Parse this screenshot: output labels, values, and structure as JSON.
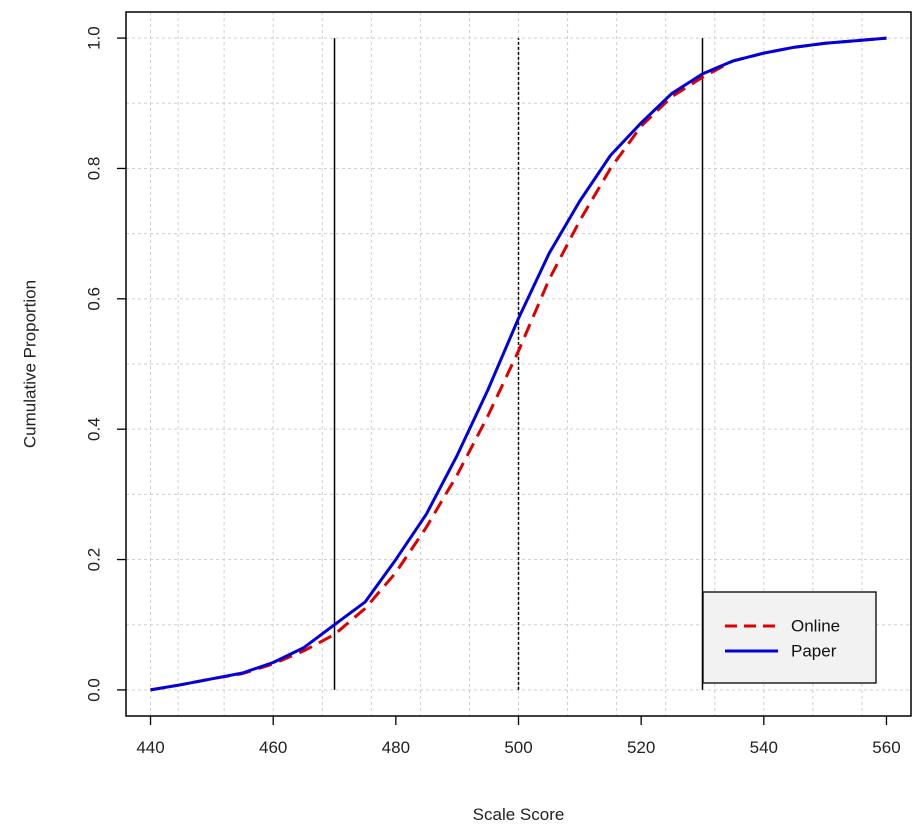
{
  "chart_data": {
    "type": "line",
    "title": "",
    "xlabel": "Scale Score",
    "ylabel": "Cumulative Proportion",
    "xlim": [
      436,
      564
    ],
    "ylim": [
      -0.04,
      1.04
    ],
    "x_ticks": [
      440,
      460,
      480,
      500,
      520,
      540,
      560
    ],
    "x_tick_labels": [
      "440",
      "460",
      "480",
      "500",
      "520",
      "540",
      "560"
    ],
    "y_ticks": [
      0.0,
      0.2,
      0.4,
      0.6,
      0.8,
      1.0
    ],
    "y_tick_labels": [
      "0.0",
      "0.2",
      "0.4",
      "0.6",
      "0.8",
      "1.0"
    ],
    "grid": true,
    "grid_x": [
      440,
      444.5,
      452,
      460,
      468,
      476,
      484,
      492,
      500,
      508,
      516,
      524,
      532,
      540,
      548,
      556
    ],
    "grid_y": [
      0.0,
      0.1,
      0.2,
      0.3,
      0.4,
      0.5,
      0.6,
      0.7,
      0.8,
      0.9,
      1.0
    ],
    "legend_position": "bottom-right",
    "reference_lines": [
      {
        "x": 470,
        "y_range": [
          0,
          1
        ],
        "style": "solid",
        "color": "#000000"
      },
      {
        "x": 500,
        "y_range": [
          0,
          1
        ],
        "style": "dotted",
        "color": "#000000"
      },
      {
        "x": 530,
        "y_range": [
          0,
          1
        ],
        "style": "solid",
        "color": "#000000"
      }
    ],
    "series": [
      {
        "name": "Online",
        "color": "#dd0000",
        "style": "dashed",
        "x": [
          440,
          445,
          450,
          455,
          460,
          465,
          470,
          475,
          480,
          485,
          490,
          495,
          500,
          505,
          510,
          515,
          520,
          525,
          530,
          535,
          540,
          545,
          550,
          555,
          560
        ],
        "y": [
          0.0,
          0.008,
          0.017,
          0.025,
          0.04,
          0.06,
          0.085,
          0.125,
          0.18,
          0.25,
          0.33,
          0.42,
          0.52,
          0.63,
          0.72,
          0.8,
          0.865,
          0.91,
          0.94,
          0.965,
          0.977,
          0.986,
          0.992,
          0.996,
          1.0
        ]
      },
      {
        "name": "Paper",
        "color": "#0000dd",
        "style": "solid",
        "x": [
          440,
          445,
          450,
          455,
          460,
          465,
          470,
          475,
          480,
          485,
          490,
          495,
          500,
          505,
          510,
          515,
          520,
          525,
          530,
          535,
          540,
          545,
          550,
          555,
          560
        ],
        "y": [
          0.0,
          0.008,
          0.017,
          0.026,
          0.042,
          0.065,
          0.1,
          0.135,
          0.2,
          0.27,
          0.36,
          0.46,
          0.57,
          0.67,
          0.75,
          0.82,
          0.87,
          0.915,
          0.945,
          0.965,
          0.977,
          0.986,
          0.992,
          0.996,
          1.0
        ]
      }
    ]
  }
}
